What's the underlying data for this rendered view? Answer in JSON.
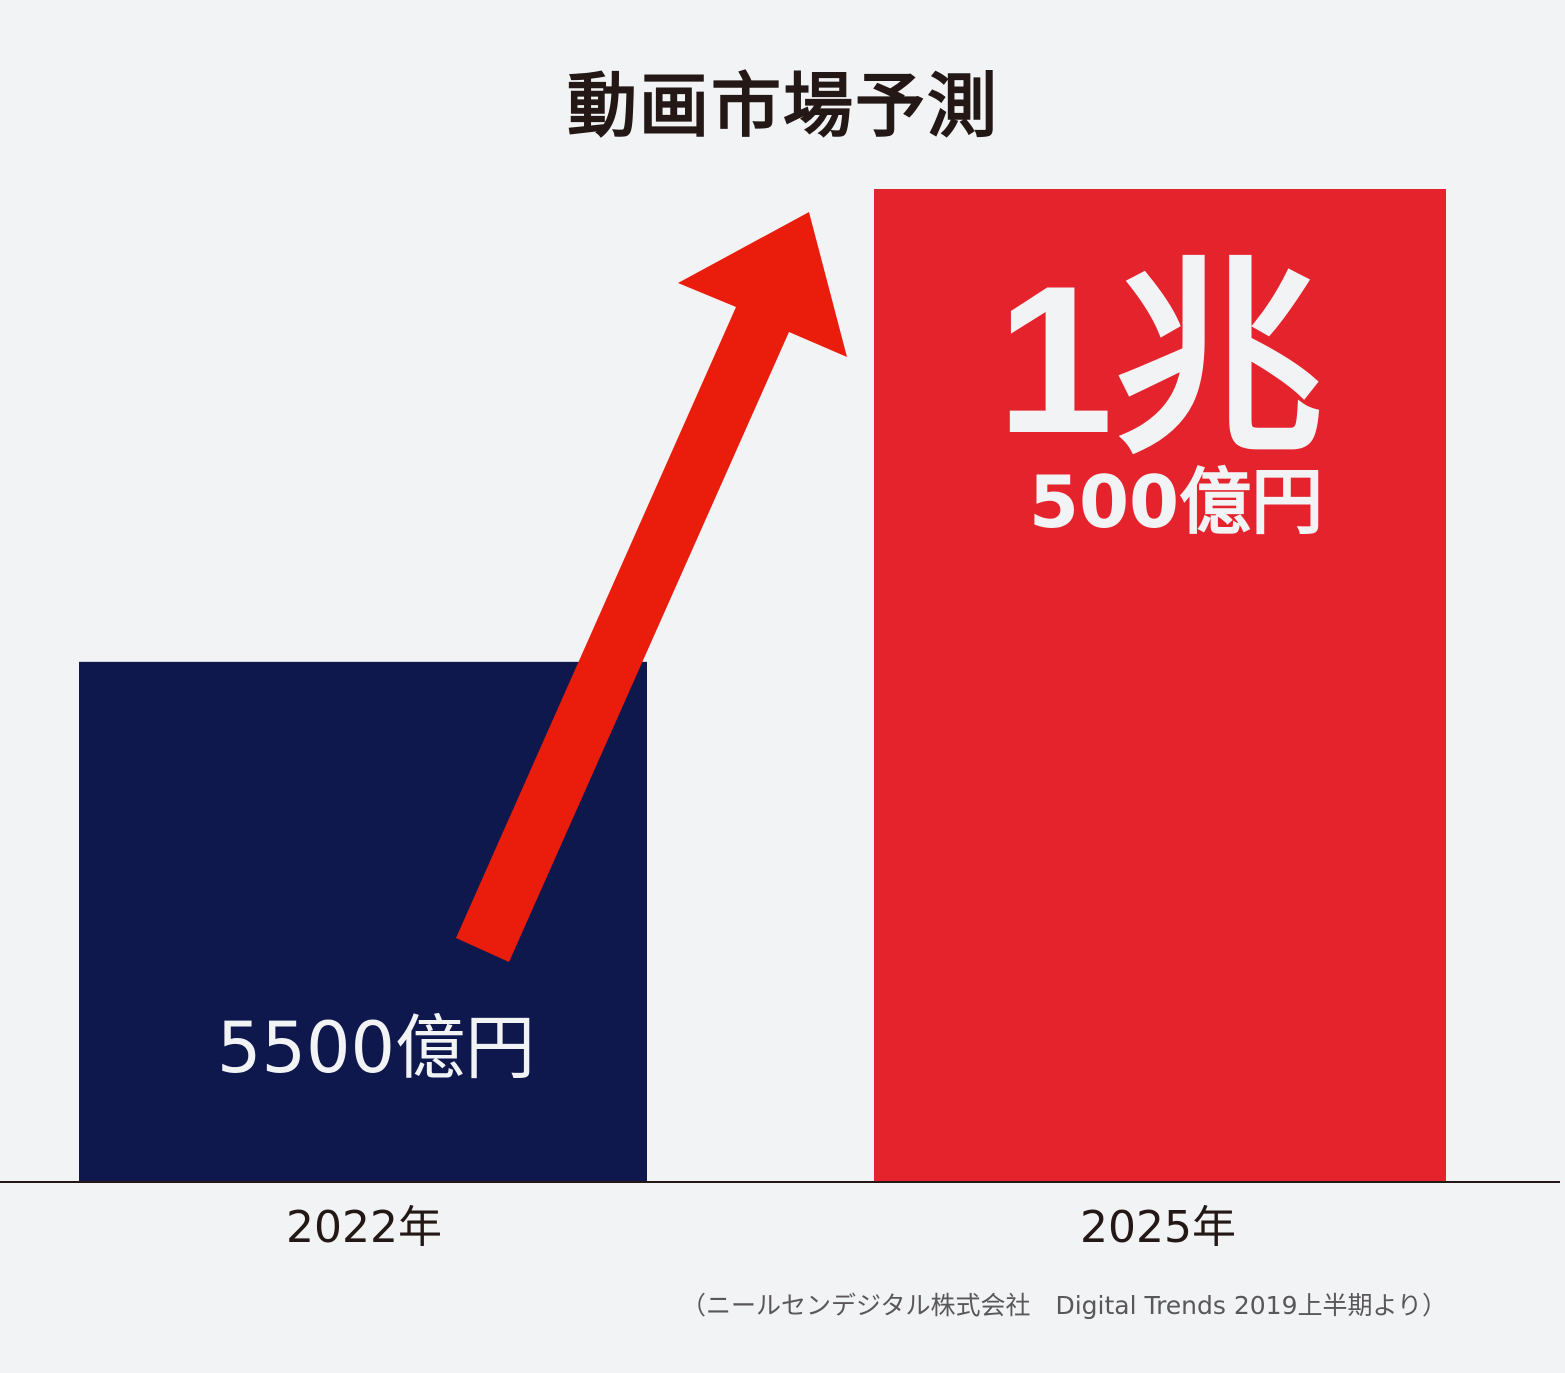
{
  "chart_data": {
    "type": "bar",
    "title": "動画市場予測",
    "categories": [
      "2022年",
      "2025年"
    ],
    "values": [
      5500,
      10500
    ],
    "unit": "億円",
    "data_labels": [
      {
        "main": "5500億円"
      },
      {
        "main": "1兆",
        "sub": "500億円"
      }
    ],
    "bar_colors": [
      "#0f184d",
      "#e5232d"
    ],
    "arrow_color": "#ea1d0c",
    "ylim": [
      0,
      10500
    ],
    "grid": false,
    "legend": "none",
    "source": "（ニールセンデジタル株式会社　Digital Trends 2019上半期より）"
  }
}
